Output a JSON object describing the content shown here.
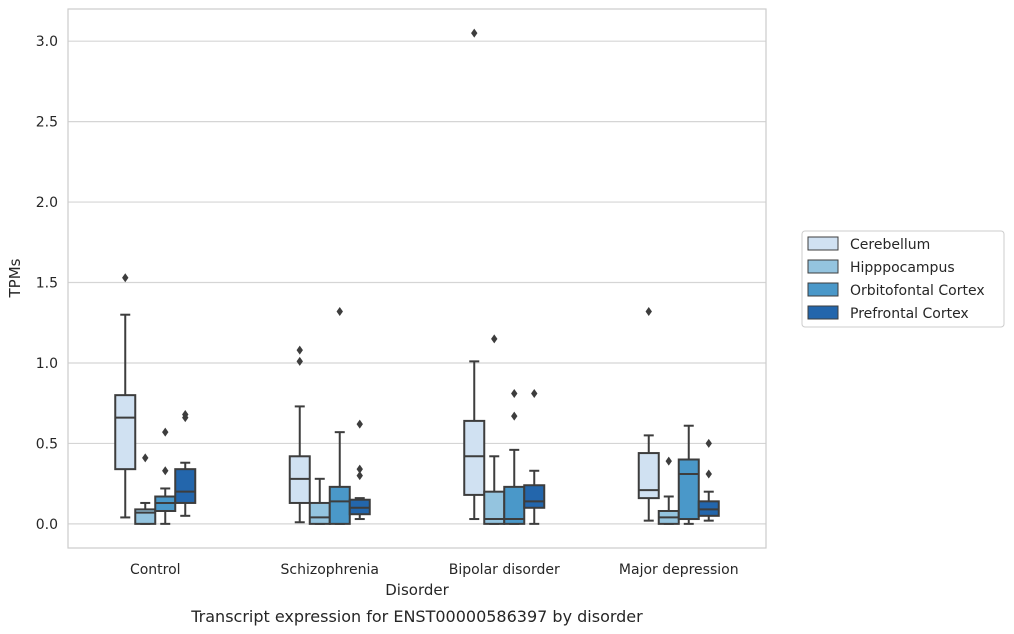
{
  "chart_data": {
    "type": "box",
    "categories": [
      "Control",
      "Schizophrenia",
      "Bipolar disorder",
      "Major depression"
    ],
    "xlabel": "Disorder",
    "ylabel": "TPMs",
    "ylim": [
      -0.15,
      3.2
    ],
    "yticks": [
      0.0,
      0.5,
      1.0,
      1.5,
      2.0,
      2.5,
      3.0
    ],
    "ytick_labels": [
      "0.0",
      "0.5",
      "1.0",
      "1.5",
      "2.0",
      "2.5",
      "3.0"
    ],
    "grid": "horizontal",
    "legend_position": "right",
    "series": [
      {
        "name": "Cerebellum",
        "color": "#d0e1f2",
        "boxes": [
          {
            "whisker_low": 0.04,
            "q1": 0.34,
            "median": 0.66,
            "q3": 0.8,
            "whisker_high": 1.3,
            "outliers": [
              1.53
            ]
          },
          {
            "whisker_low": 0.01,
            "q1": 0.13,
            "median": 0.28,
            "q3": 0.42,
            "whisker_high": 0.73,
            "outliers": [
              1.08,
              1.01
            ]
          },
          {
            "whisker_low": 0.03,
            "q1": 0.18,
            "median": 0.42,
            "q3": 0.64,
            "whisker_high": 1.01,
            "outliers": [
              3.05
            ]
          },
          {
            "whisker_low": 0.02,
            "q1": 0.16,
            "median": 0.21,
            "q3": 0.44,
            "whisker_high": 0.55,
            "outliers": [
              1.32
            ]
          }
        ]
      },
      {
        "name": "Hipppocampus",
        "color": "#94c4df",
        "boxes": [
          {
            "whisker_low": 0.0,
            "q1": 0.0,
            "median": 0.07,
            "q3": 0.09,
            "whisker_high": 0.13,
            "outliers": [
              0.41
            ]
          },
          {
            "whisker_low": 0.0,
            "q1": 0.0,
            "median": 0.04,
            "q3": 0.13,
            "whisker_high": 0.28,
            "outliers": []
          },
          {
            "whisker_low": 0.0,
            "q1": 0.0,
            "median": 0.03,
            "q3": 0.2,
            "whisker_high": 0.42,
            "outliers": [
              1.15
            ]
          },
          {
            "whisker_low": 0.0,
            "q1": 0.0,
            "median": 0.04,
            "q3": 0.08,
            "whisker_high": 0.17,
            "outliers": [
              0.39
            ]
          }
        ]
      },
      {
        "name": "Orbitofontal Cortex",
        "color": "#4a98c9",
        "boxes": [
          {
            "whisker_low": 0.0,
            "q1": 0.08,
            "median": 0.13,
            "q3": 0.17,
            "whisker_high": 0.22,
            "outliers": [
              0.57,
              0.33
            ]
          },
          {
            "whisker_low": 0.0,
            "q1": 0.0,
            "median": 0.14,
            "q3": 0.23,
            "whisker_high": 0.57,
            "outliers": [
              1.32
            ]
          },
          {
            "whisker_low": 0.0,
            "q1": 0.0,
            "median": 0.03,
            "q3": 0.23,
            "whisker_high": 0.46,
            "outliers": [
              0.81,
              0.67
            ]
          },
          {
            "whisker_low": 0.0,
            "q1": 0.03,
            "median": 0.31,
            "q3": 0.4,
            "whisker_high": 0.61,
            "outliers": []
          }
        ]
      },
      {
        "name": "Prefrontal Cortex",
        "color": "#2366ac",
        "boxes": [
          {
            "whisker_low": 0.05,
            "q1": 0.13,
            "median": 0.2,
            "q3": 0.34,
            "whisker_high": 0.38,
            "outliers": [
              0.68,
              0.66
            ]
          },
          {
            "whisker_low": 0.03,
            "q1": 0.06,
            "median": 0.1,
            "q3": 0.15,
            "whisker_high": 0.16,
            "outliers": [
              0.62,
              0.34,
              0.3
            ]
          },
          {
            "whisker_low": 0.0,
            "q1": 0.1,
            "median": 0.14,
            "q3": 0.24,
            "whisker_high": 0.33,
            "outliers": [
              0.81
            ]
          },
          {
            "whisker_low": 0.02,
            "q1": 0.05,
            "median": 0.09,
            "q3": 0.14,
            "whisker_high": 0.2,
            "outliers": [
              0.5,
              0.31
            ]
          }
        ]
      }
    ],
    "caption": "Transcript expression for ENST00000586397 by disorder"
  }
}
